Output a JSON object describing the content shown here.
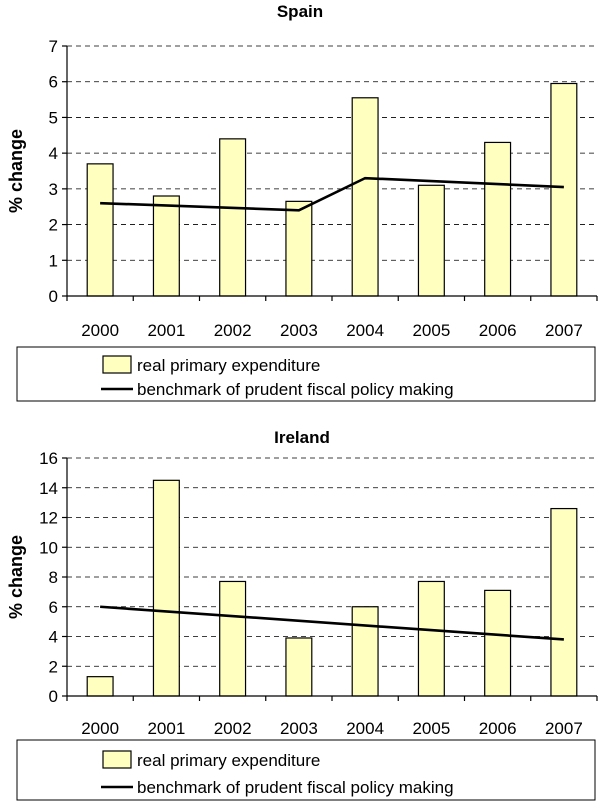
{
  "chart_data": [
    {
      "type": "bar",
      "title": "Spain",
      "ylabel": "% change",
      "xlabel": "",
      "categories": [
        "2000",
        "2001",
        "2002",
        "2003",
        "2004",
        "2005",
        "2006",
        "2007"
      ],
      "ylim": [
        0,
        7
      ],
      "yticks": [
        "0",
        "1",
        "2",
        "3",
        "4",
        "5",
        "6",
        "7"
      ],
      "grid": true,
      "legend_position": "bottom",
      "series": [
        {
          "name": "real primary expenditure",
          "type": "bar",
          "values": [
            3.7,
            2.8,
            4.4,
            2.65,
            5.55,
            3.1,
            4.3,
            5.95
          ]
        },
        {
          "name": "benchmark of prudent fiscal policy making",
          "type": "line",
          "values": [
            2.6,
            null,
            null,
            2.4,
            3.3,
            null,
            null,
            3.05
          ]
        }
      ],
      "colors": {
        "bar": "#ffffc0",
        "line": "#000000"
      }
    },
    {
      "type": "bar",
      "title": "Ireland",
      "ylabel": "% change",
      "xlabel": "",
      "categories": [
        "2000",
        "2001",
        "2002",
        "2003",
        "2004",
        "2005",
        "2006",
        "2007"
      ],
      "ylim": [
        0,
        16
      ],
      "yticks": [
        "0",
        "2",
        "4",
        "6",
        "8",
        "10",
        "12",
        "14",
        "16"
      ],
      "grid": true,
      "legend_position": "bottom",
      "series": [
        {
          "name": "real primary expenditure",
          "type": "bar",
          "values": [
            1.3,
            14.5,
            7.7,
            3.9,
            6.0,
            7.7,
            7.1,
            12.6
          ]
        },
        {
          "name": "benchmark of prudent fiscal policy making",
          "type": "line",
          "values": [
            6.0,
            null,
            null,
            null,
            null,
            null,
            null,
            3.8
          ]
        }
      ],
      "colors": {
        "bar": "#ffffc0",
        "line": "#000000"
      }
    }
  ]
}
